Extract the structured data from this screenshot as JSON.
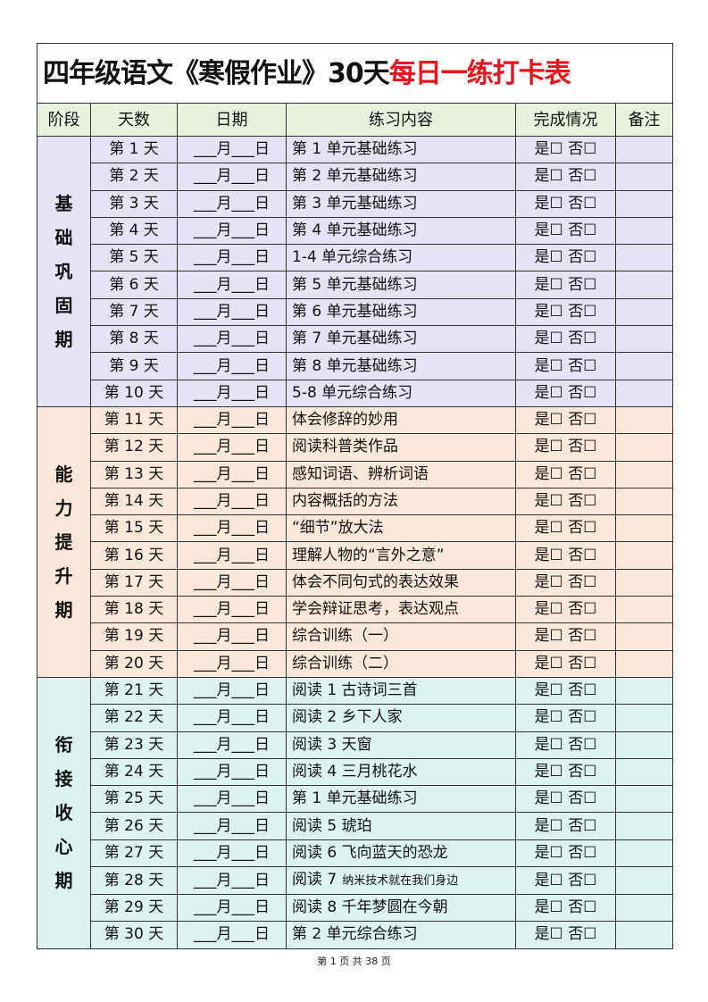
{
  "title": {
    "black": "四年级语文《寒假作业》30天",
    "red": "每日一练打卡表"
  },
  "headers": [
    "阶段",
    "天数",
    "日期",
    "练习内容",
    "完成情况",
    "备注"
  ],
  "date_template": "___月___日",
  "status_template": "是☐ 否☐",
  "colors": {
    "title_red": "#e8141c",
    "header_bg": "#e9f2de",
    "stage1_bg": "#e4e4f4",
    "stage2_bg": "#fbe8da",
    "stage3_bg": "#ddf3f2"
  },
  "stages": [
    {
      "name": "基础巩固期",
      "rows": [
        {
          "day": "第 1 天",
          "content": "第 1 单元基础练习"
        },
        {
          "day": "第 2 天",
          "content": "第 2 单元基础练习"
        },
        {
          "day": "第 3 天",
          "content": "第 3 单元基础练习"
        },
        {
          "day": "第 4 天",
          "content": "第 4 单元基础练习"
        },
        {
          "day": "第 5 天",
          "content": "1-4 单元综合练习"
        },
        {
          "day": "第 6 天",
          "content": "第 5 单元基础练习"
        },
        {
          "day": "第 7 天",
          "content": "第 6 单元基础练习"
        },
        {
          "day": "第 8 天",
          "content": "第 7 单元基础练习"
        },
        {
          "day": "第 9 天",
          "content": "第 8 单元基础练习"
        },
        {
          "day": "第 10 天",
          "content": "5-8 单元综合练习"
        }
      ]
    },
    {
      "name": "能力提升期",
      "rows": [
        {
          "day": "第 11 天",
          "content": "体会修辞的妙用"
        },
        {
          "day": "第 12 天",
          "content": "阅读科普类作品"
        },
        {
          "day": "第 13 天",
          "content": "感知词语、辨析词语"
        },
        {
          "day": "第 14 天",
          "content": "内容概括的方法"
        },
        {
          "day": "第 15 天",
          "content": "“细节”放大法"
        },
        {
          "day": "第 16 天",
          "content": "理解人物的“言外之意”"
        },
        {
          "day": "第 17 天",
          "content": "体会不同句式的表达效果"
        },
        {
          "day": "第 18 天",
          "content": "学会辩证思考，表达观点"
        },
        {
          "day": "第 19 天",
          "content": "综合训练（一）"
        },
        {
          "day": "第 20 天",
          "content": "综合训练（二）"
        }
      ]
    },
    {
      "name": "衔接收心期",
      "rows": [
        {
          "day": "第 21 天",
          "content": "阅读 1  古诗词三首"
        },
        {
          "day": "第 22 天",
          "content": "阅读 2  乡下人家"
        },
        {
          "day": "第 23 天",
          "content": "阅读 3  天窗"
        },
        {
          "day": "第 24 天",
          "content": "阅读 4  三月桃花水"
        },
        {
          "day": "第 25 天",
          "content": "第 1 单元基础练习"
        },
        {
          "day": "第 26 天",
          "content": "阅读 5  琥珀"
        },
        {
          "day": "第 27 天",
          "content": "阅读 6  飞向蓝天的恐龙"
        },
        {
          "day": "第 28 天",
          "content": "阅读 7",
          "content_small": "纳米技术就在我们身边"
        },
        {
          "day": "第 29 天",
          "content": "阅读 8  千年梦圆在今朝"
        },
        {
          "day": "第 30 天",
          "content": "第 2 单元综合练习"
        }
      ]
    }
  ],
  "footer": "第 1 页 共 38 页"
}
